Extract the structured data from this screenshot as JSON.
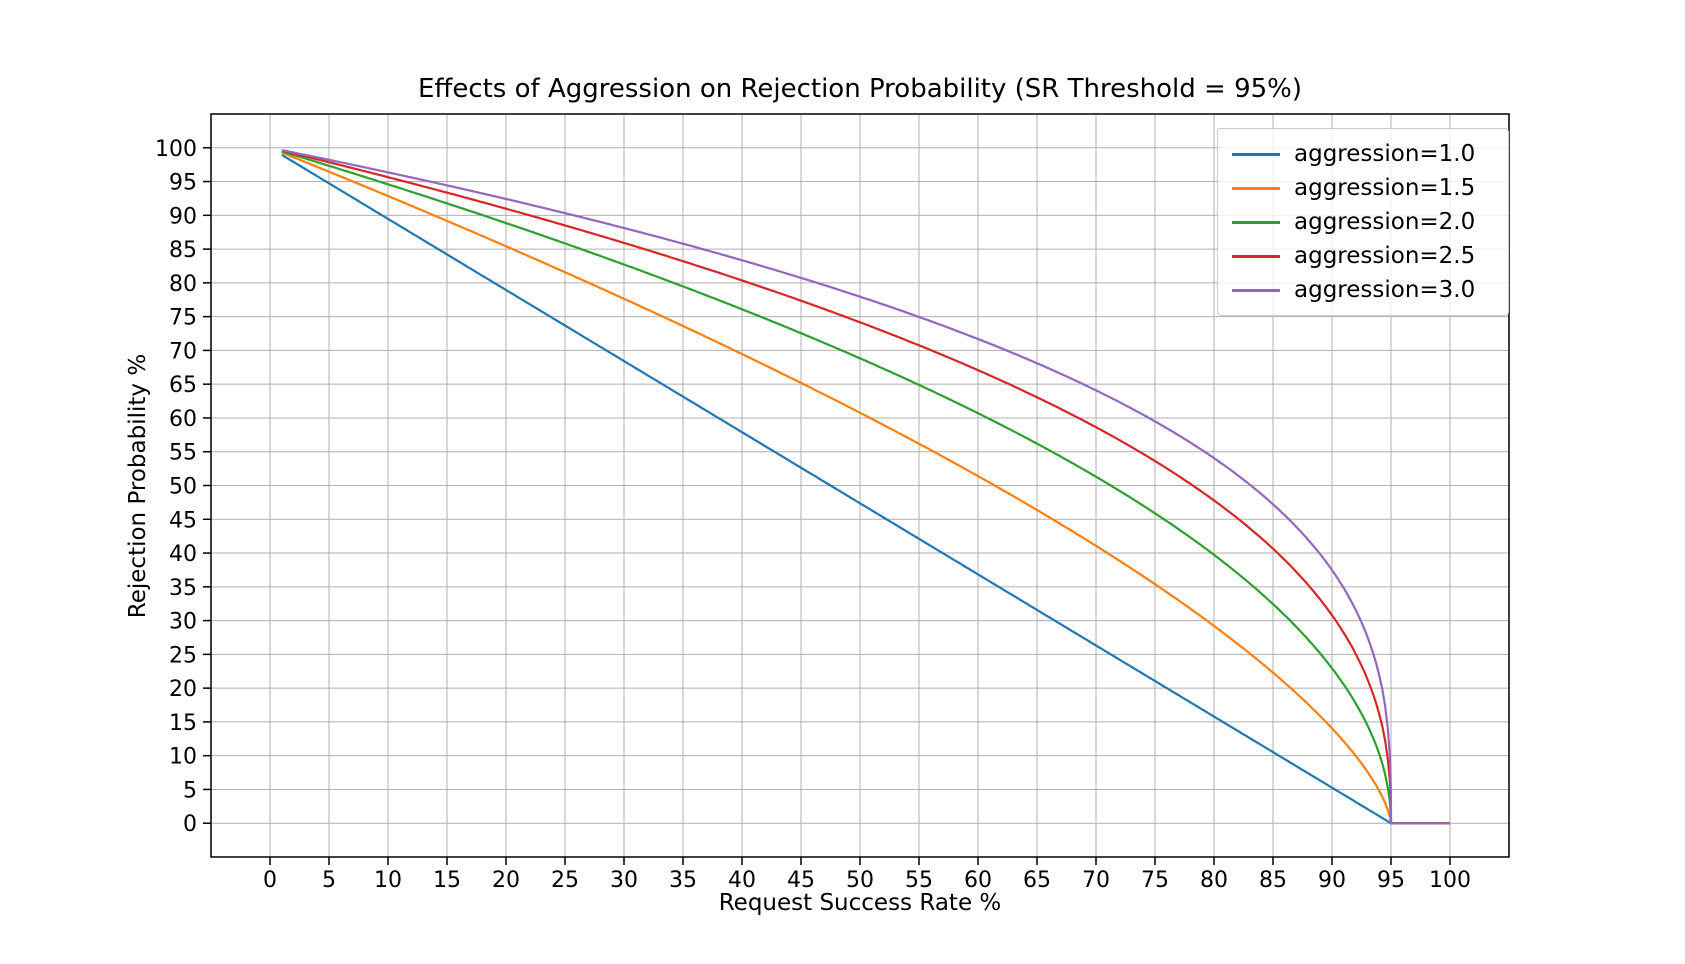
{
  "figure": {
    "background": "#ffffff"
  },
  "chart_data": {
    "type": "line",
    "title": "Effects of Aggression on Rejection Probability (SR Threshold = 95%)",
    "xlabel": "Request Success Rate %",
    "ylabel": "Rejection Probability %",
    "xlim": [
      -5,
      105
    ],
    "ylim": [
      -5,
      105
    ],
    "xticks": [
      0,
      5,
      10,
      15,
      20,
      25,
      30,
      35,
      40,
      45,
      50,
      55,
      60,
      65,
      70,
      75,
      80,
      85,
      90,
      95,
      100
    ],
    "yticks": [
      0,
      5,
      10,
      15,
      20,
      25,
      30,
      35,
      40,
      45,
      50,
      55,
      60,
      65,
      70,
      75,
      80,
      85,
      90,
      95,
      100
    ],
    "grid": true,
    "grid_color": "#b0b0b0",
    "spine_color": "#000000",
    "legend_position": "upper right",
    "sr_threshold_pct": 95,
    "formula": "rejection_pct = 100 * (1 - sr/95)^(1/aggression) for sr < 95, else 0",
    "x_sample_start": 1,
    "x": [
      1,
      5,
      10,
      15,
      20,
      25,
      30,
      35,
      40,
      45,
      50,
      55,
      60,
      65,
      70,
      75,
      80,
      85,
      90,
      95,
      100
    ],
    "series": [
      {
        "label": "aggression=1.0",
        "aggression": 1.0,
        "color": "#1f77b4",
        "values": [
          98.9,
          94.7,
          89.5,
          84.2,
          78.9,
          73.7,
          68.4,
          63.2,
          57.9,
          52.6,
          47.4,
          42.1,
          36.8,
          31.6,
          26.3,
          21.1,
          15.8,
          10.5,
          5.3,
          0.0,
          0.0
        ]
      },
      {
        "label": "aggression=1.5",
        "aggression": 1.5,
        "color": "#ff7f0e",
        "values": [
          99.3,
          96.5,
          92.9,
          89.2,
          85.4,
          81.6,
          77.6,
          73.6,
          69.5,
          65.2,
          60.8,
          56.2,
          51.4,
          46.4,
          41.1,
          35.4,
          29.2,
          22.3,
          14.1,
          0.0,
          0.0
        ]
      },
      {
        "label": "aggression=2.0",
        "aggression": 2.0,
        "color": "#2ca02c",
        "values": [
          99.5,
          97.3,
          94.6,
          91.8,
          88.9,
          85.8,
          82.7,
          79.5,
          76.1,
          72.5,
          68.8,
          64.9,
          60.7,
          56.2,
          51.3,
          45.9,
          39.7,
          32.4,
          22.9,
          0.0,
          0.0
        ]
      },
      {
        "label": "aggression=2.5",
        "aggression": 2.5,
        "color": "#d62728",
        "values": [
          99.6,
          97.9,
          95.6,
          93.4,
          91.0,
          88.5,
          85.9,
          83.2,
          80.4,
          77.4,
          74.2,
          70.8,
          67.1,
          63.1,
          58.6,
          53.6,
          47.8,
          40.6,
          30.8,
          0.0,
          0.0
        ]
      },
      {
        "label": "aggression=3.0",
        "aggression": 3.0,
        "color": "#9467bd",
        "values": [
          99.6,
          98.2,
          96.4,
          94.4,
          92.4,
          90.3,
          88.1,
          85.8,
          83.4,
          80.7,
          78.0,
          74.9,
          71.7,
          68.1,
          64.1,
          59.5,
          54.1,
          47.2,
          37.5,
          0.0,
          0.0
        ]
      }
    ]
  }
}
